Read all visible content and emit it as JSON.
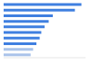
{
  "chart_data": {
    "type": "bar",
    "orientation": "horizontal",
    "categories": [
      null,
      null,
      null,
      null,
      null,
      null,
      null,
      null,
      null,
      null
    ],
    "values": [
      95,
      87,
      60,
      55,
      50,
      46,
      44,
      40,
      36,
      33
    ],
    "colors": [
      "#3f7fe0",
      "#3f7fe0",
      "#3f7fe0",
      "#3f7fe0",
      "#3f7fe0",
      "#3f7fe0",
      "#3f7fe0",
      "#3f7fe0",
      "#a9c3ea",
      "#a9c3ea"
    ],
    "xlim": [
      0,
      100
    ],
    "tick_labels": false,
    "grid": false
  }
}
